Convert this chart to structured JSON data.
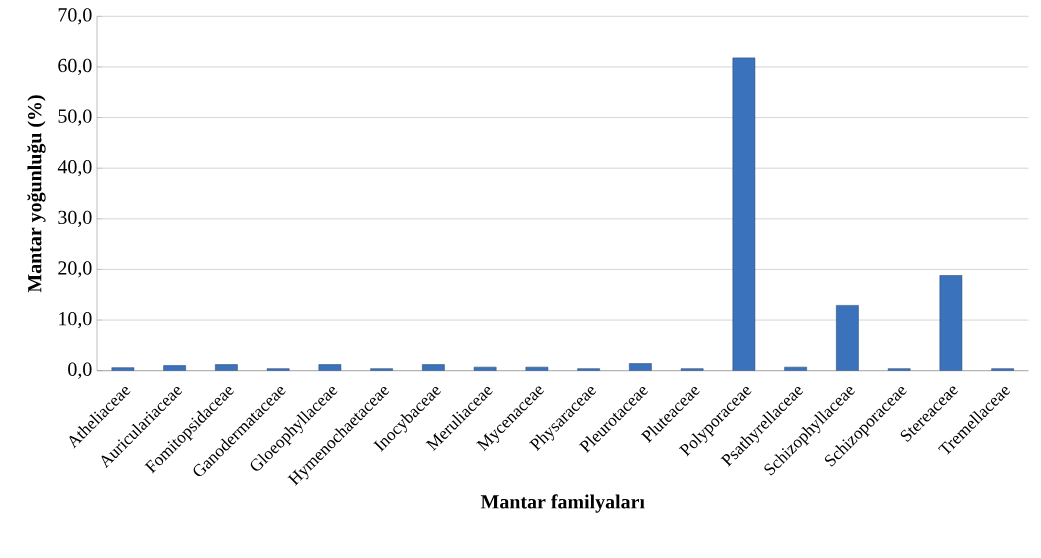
{
  "chart_data": {
    "type": "bar",
    "xlabel": "Mantar familyaları",
    "ylabel": "Mantar yoğunluğu (%)",
    "categories": [
      "Atheliaceae",
      "Auriculariaceae",
      "Fomitopsidaceae",
      "Ganodermataceae",
      "Gloeophyllaceae",
      "Hymenochaetaceae",
      "Inocybaceae",
      "Meruliaceae",
      "Mycenaceae",
      "Physaraceae",
      "Pleurotaceae",
      "Pluteaceae",
      "Polyporaceae",
      "Psathyrellaceae",
      "Schizophyllaceae",
      "Schizoporaceae",
      "Stereaceae",
      "Tremellaceae"
    ],
    "values": [
      0.6,
      1.0,
      1.2,
      0.4,
      1.2,
      0.4,
      1.2,
      0.7,
      0.7,
      0.4,
      1.4,
      0.4,
      61.8,
      0.7,
      12.9,
      0.4,
      18.8,
      0.4
    ],
    "color": "#3a72bc",
    "ylim": [
      0,
      70
    ],
    "yticks": [
      {
        "value": 0,
        "label": "0,0"
      },
      {
        "value": 10,
        "label": "10,0"
      },
      {
        "value": 20,
        "label": "20,0"
      },
      {
        "value": 30,
        "label": "30,0"
      },
      {
        "value": 40,
        "label": "40,0"
      },
      {
        "value": 50,
        "label": "50,0"
      },
      {
        "value": 60,
        "label": "60,0"
      },
      {
        "value": 70,
        "label": "70,0"
      }
    ],
    "grid": "y"
  }
}
